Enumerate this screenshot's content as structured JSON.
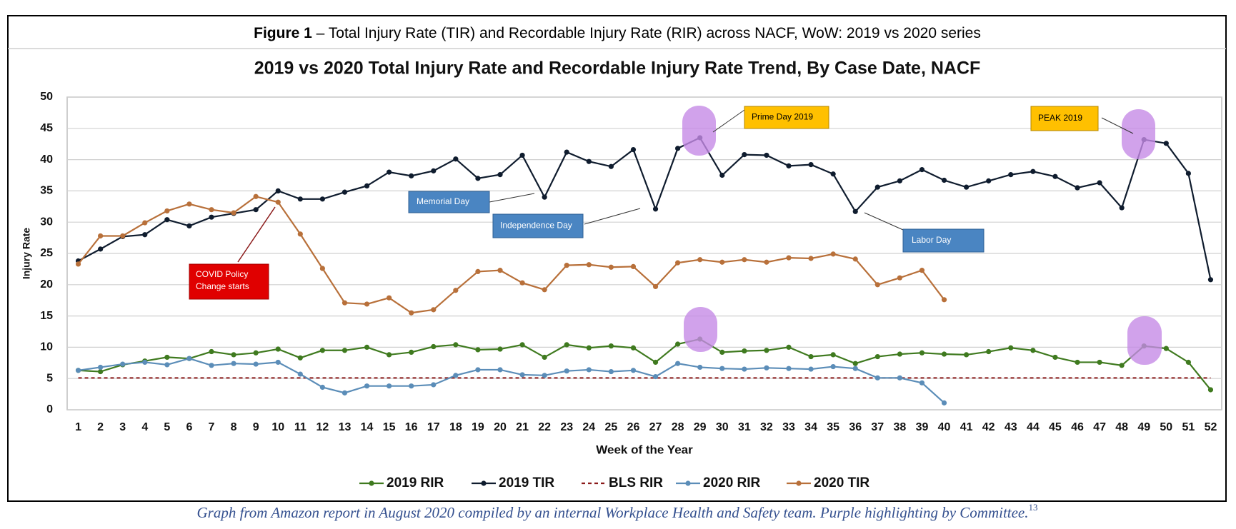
{
  "chart_data": {
    "type": "line",
    "figure_label": "Figure 1",
    "figure_title": " – Total Injury Rate (TIR) and Recordable Injury Rate (RIR) across NACF, WoW: 2019 vs 2020 series",
    "title": "2019 vs 2020 Total Injury Rate and Recordable Injury Rate Trend, By Case Date, NACF",
    "y_label": "Injury Rate",
    "x_label": "Week of the Year",
    "caption": "Graph from Amazon report in August 2020 compiled by an internal Workplace Health and Safety team. Purple highlighting by Committee.",
    "caption_note": "13",
    "annotations": {
      "prime_day": "Prime Day 2019",
      "peak": "PEAK 2019",
      "memorial_day": "Memorial Day",
      "independence_day": "Independence Day",
      "labor_day": "Labor Day",
      "covid": [
        "COVID Policy",
        "Change starts"
      ]
    },
    "categories": [
      1,
      2,
      3,
      4,
      5,
      6,
      7,
      8,
      9,
      10,
      11,
      12,
      13,
      14,
      15,
      16,
      17,
      18,
      19,
      20,
      21,
      22,
      23,
      24,
      25,
      26,
      27,
      28,
      29,
      30,
      31,
      32,
      33,
      34,
      35,
      36,
      37,
      38,
      39,
      40,
      41,
      42,
      43,
      44,
      45,
      46,
      47,
      48,
      49,
      50,
      51,
      52
    ],
    "ylim": [
      0,
      50
    ],
    "yticks": [
      0,
      5,
      10,
      15,
      20,
      25,
      30,
      35,
      40,
      45,
      50
    ],
    "grid": true,
    "legend": "bottom",
    "series": [
      {
        "name": "2019 RIR",
        "color": "#3f7a1f",
        "markers": true,
        "dashed": false,
        "values": [
          6.3,
          6.1,
          7.2,
          7.8,
          8.4,
          8.2,
          9.3,
          8.8,
          9.1,
          9.7,
          8.3,
          9.5,
          9.5,
          10,
          8.8,
          9.2,
          10.1,
          10.4,
          9.6,
          9.7,
          10.4,
          8.4,
          10.4,
          9.9,
          10.2,
          9.9,
          7.6,
          10.5,
          11.3,
          9.2,
          9.4,
          9.5,
          10,
          8.5,
          8.8,
          7.4,
          8.5,
          8.9,
          9.1,
          8.9,
          8.8,
          9.3,
          9.9,
          9.5,
          8.4,
          7.6,
          7.6,
          7.1,
          10.2,
          9.8,
          7.6,
          3.2
        ]
      },
      {
        "name": "2019 TIR",
        "color": "#0f1c2e",
        "markers": true,
        "dashed": false,
        "values": [
          23.8,
          25.7,
          27.7,
          28,
          30.4,
          29.4,
          30.8,
          31.4,
          32,
          35,
          33.7,
          33.7,
          34.8,
          35.8,
          38,
          37.4,
          38.2,
          40.1,
          37,
          37.6,
          40.7,
          34,
          41.2,
          39.7,
          38.9,
          41.6,
          32.1,
          41.8,
          43.5,
          37.5,
          40.8,
          40.7,
          39,
          39.2,
          37.7,
          31.7,
          35.6,
          36.6,
          38.4,
          36.7,
          35.6,
          36.6,
          37.6,
          38.1,
          37.3,
          35.5,
          36.3,
          32.3,
          43.2,
          42.6,
          37.8,
          20.8
        ]
      },
      {
        "name": "BLS RIR",
        "color": "#8b1a1a",
        "markers": false,
        "dashed": true,
        "values": [
          5.1,
          5.1,
          5.1,
          5.1,
          5.1,
          5.1,
          5.1,
          5.1,
          5.1,
          5.1,
          5.1,
          5.1,
          5.1,
          5.1,
          5.1,
          5.1,
          5.1,
          5.1,
          5.1,
          5.1,
          5.1,
          5.1,
          5.1,
          5.1,
          5.1,
          5.1,
          5.1,
          5.1,
          5.1,
          5.1,
          5.1,
          5.1,
          5.1,
          5.1,
          5.1,
          5.1,
          5.1,
          5.1,
          5.1,
          5.1,
          5.1,
          5.1,
          5.1,
          5.1,
          5.1,
          5.1,
          5.1,
          5.1,
          5.1,
          5.1,
          5.1,
          5.1
        ]
      },
      {
        "name": "2020 RIR",
        "color": "#5b8db8",
        "markers": true,
        "dashed": false,
        "values": [
          6.3,
          6.8,
          7.3,
          7.6,
          7.2,
          8.2,
          7.1,
          7.4,
          7.3,
          7.6,
          5.7,
          3.6,
          2.7,
          3.8,
          3.8,
          3.8,
          4,
          5.5,
          6.4,
          6.4,
          5.6,
          5.5,
          6.2,
          6.4,
          6.1,
          6.3,
          5.3,
          7.4,
          6.8,
          6.6,
          6.5,
          6.7,
          6.6,
          6.5,
          6.9,
          6.6,
          5.1,
          5.1,
          4.3,
          1.1,
          null,
          null,
          null,
          null,
          null,
          null,
          null,
          null,
          null,
          null,
          null,
          null
        ]
      },
      {
        "name": "2020 TIR",
        "color": "#b8703a",
        "markers": true,
        "dashed": false,
        "values": [
          23.3,
          27.8,
          27.8,
          29.9,
          31.8,
          32.9,
          32,
          31.5,
          34.1,
          33.2,
          28.1,
          22.6,
          17.1,
          16.9,
          17.9,
          15.5,
          16,
          19.1,
          22.1,
          22.3,
          20.3,
          19.2,
          23.1,
          23.2,
          22.8,
          22.9,
          19.7,
          23.5,
          24,
          23.6,
          24,
          23.6,
          24.3,
          24.2,
          24.9,
          24.1,
          20,
          21.1,
          22.3,
          17.6,
          null,
          null,
          null,
          null,
          null,
          null,
          null,
          null,
          null,
          null,
          null,
          null
        ]
      }
    ]
  }
}
